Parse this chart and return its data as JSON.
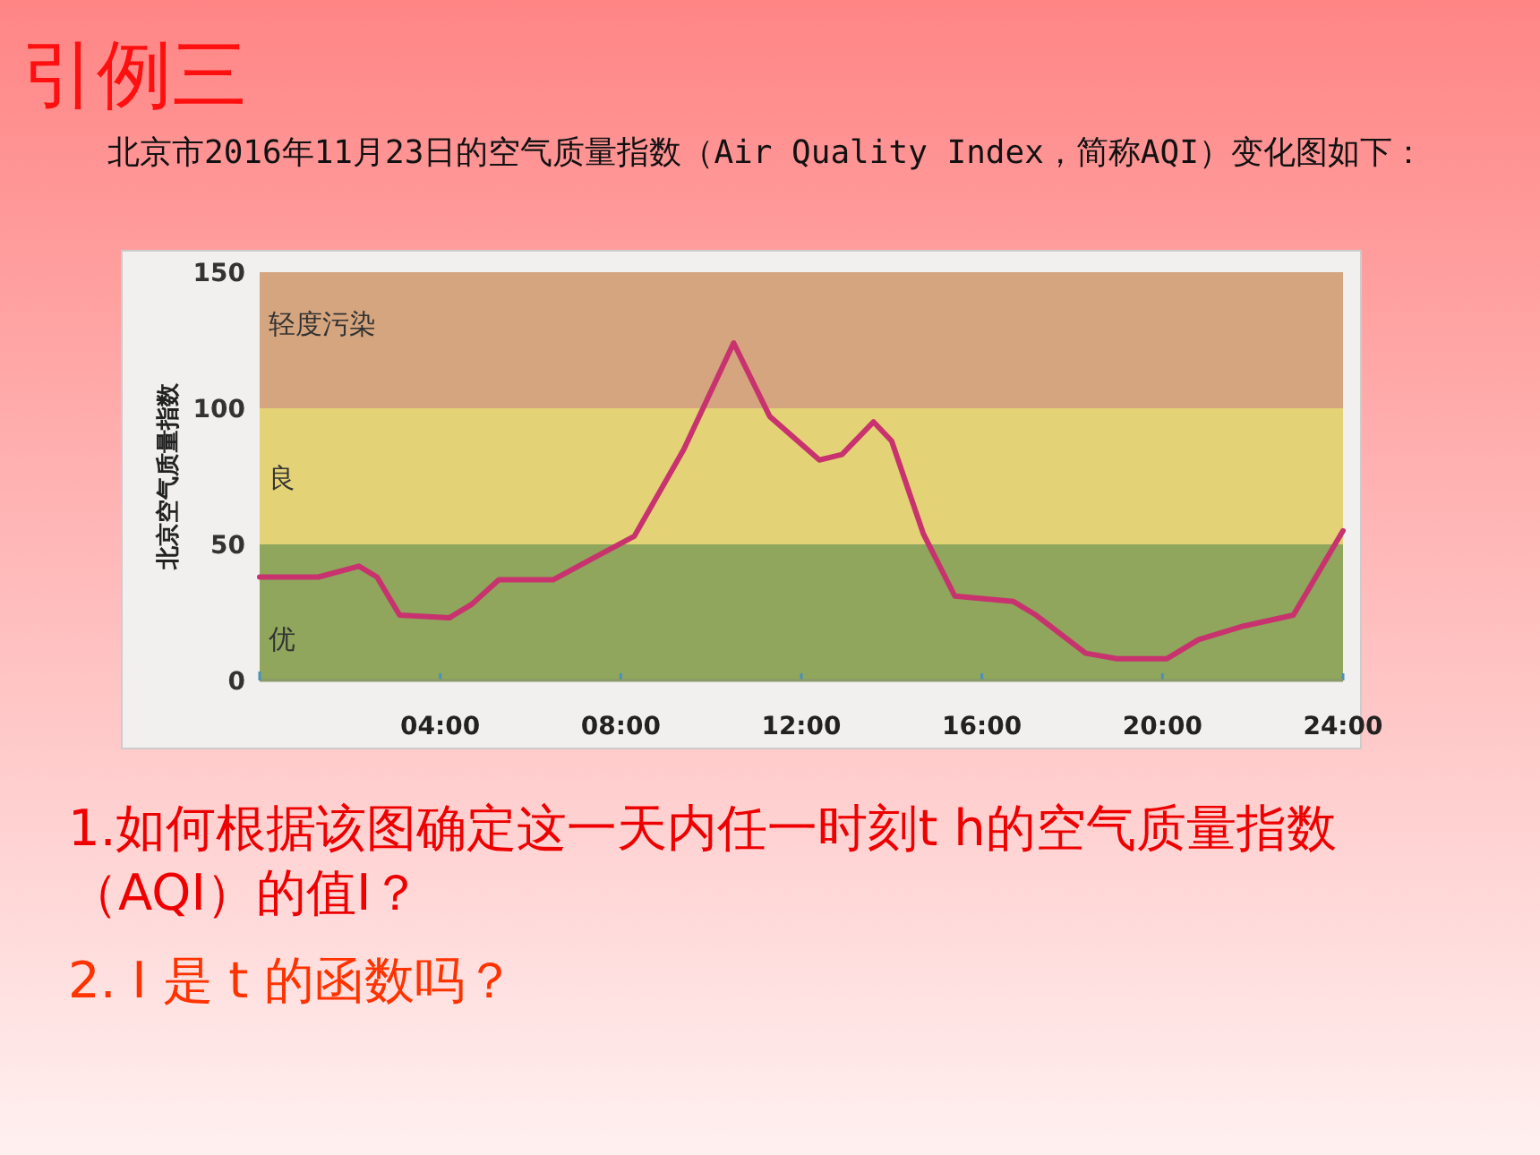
{
  "chart_data": {
    "type": "line",
    "title": "引例三",
    "subtitle": "北京市2016年11月23日的空气质量指数（Air  Quality  Index，简称AQI）变化图如下：",
    "ylabel": "北京空气质量指数",
    "x": [
      0,
      1.3,
      2.2,
      2.6,
      3.1,
      4.2,
      4.7,
      5.3,
      6.5,
      7.4,
      8.3,
      9.4,
      10.5,
      11.3,
      12.4,
      12.9,
      13.6,
      14.0,
      14.7,
      15.4,
      16.7,
      17.2,
      18.3,
      19.0,
      20.1,
      20.8,
      21.8,
      22.9,
      24
    ],
    "series": [
      {
        "color": "#c8326e",
        "values": [
          38,
          38,
          42,
          38,
          24,
          23,
          28,
          37,
          37,
          45,
          53,
          85,
          124,
          97,
          81,
          83,
          95,
          88,
          54,
          31,
          29,
          24,
          10,
          8,
          8,
          15,
          20,
          24,
          55
        ]
      }
    ],
    "xlim": [
      0,
      24
    ],
    "xticks": [
      {
        "value": 4,
        "label": "04:00"
      },
      {
        "value": 8,
        "label": "08:00"
      },
      {
        "value": 12,
        "label": "12:00"
      },
      {
        "value": 16,
        "label": "16:00"
      },
      {
        "value": 20,
        "label": "20:00"
      },
      {
        "value": 24,
        "label": "24:00"
      }
    ],
    "ylim": [
      0,
      150
    ],
    "yticks": [
      0,
      50,
      100,
      150
    ],
    "bands": [
      {
        "axis": "y",
        "from": 0,
        "to": 50,
        "label": "优",
        "color": "#8fa65c"
      },
      {
        "axis": "y",
        "from": 50,
        "to": 100,
        "label": "良",
        "color": "#e4d276"
      },
      {
        "axis": "y",
        "from": 100,
        "to": 150,
        "label": "轻度污染",
        "color": "#d4a57e"
      }
    ],
    "marker": "none",
    "line_style": "solid",
    "grid": false,
    "annotations": [
      "1.如何根据该图确定这一天内任一时刻t h的空气质量指数（AQI）的值I？",
      "2.    I 是 t  的函数吗？"
    ]
  }
}
